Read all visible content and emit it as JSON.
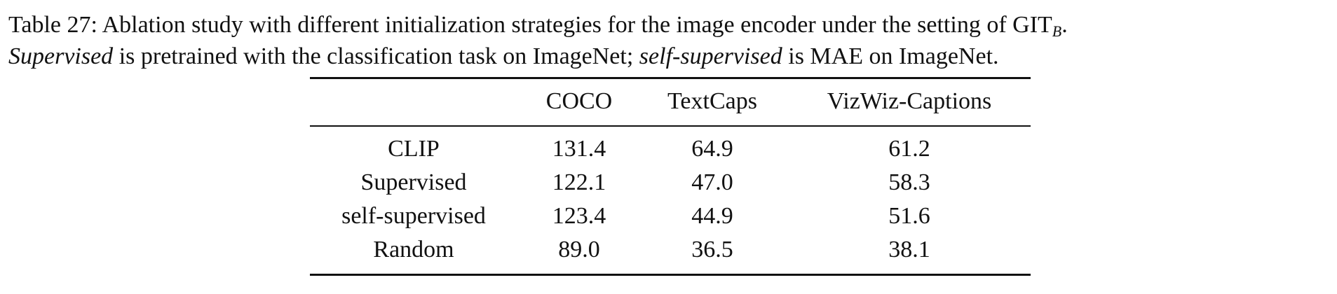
{
  "caption": {
    "line1": {
      "label": "Table 27:",
      "text": "Ablation study with different initialization strategies for the image encoder under the setting of GIT",
      "subscript": "B",
      "end": "."
    },
    "line2": {
      "italic1": "Supervised",
      "text1": "is pretrained with the classification task on ImageNet;",
      "italic2": "self-supervised",
      "text2": "is MAE on ImageNet."
    }
  },
  "table": {
    "header": [
      "COCO",
      "TextCaps",
      "VizWiz-Captions"
    ],
    "rows": [
      [
        "CLIP",
        "131.4",
        "64.9",
        "61.2"
      ],
      [
        "Supervised",
        "122.1",
        "47.0",
        "58.3"
      ],
      [
        "self-supervised",
        "123.4",
        "44.9",
        "51.6"
      ],
      [
        "Random",
        "89.0",
        "36.5",
        "38.1"
      ]
    ]
  }
}
